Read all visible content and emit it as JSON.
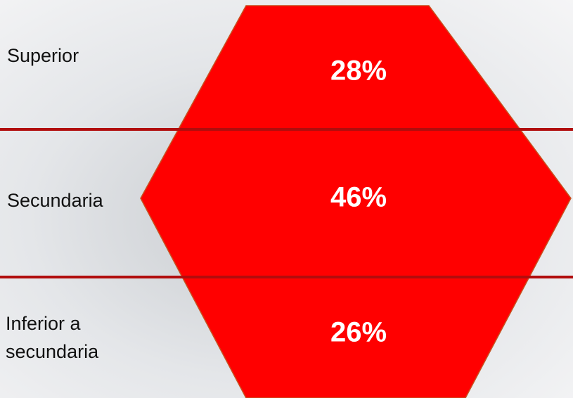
{
  "segments": [
    {
      "label": "Superior",
      "value": "28%"
    },
    {
      "label": "Secundaria",
      "value": "46%"
    },
    {
      "label": "Inferior a secundaria",
      "value": "26%"
    }
  ]
}
